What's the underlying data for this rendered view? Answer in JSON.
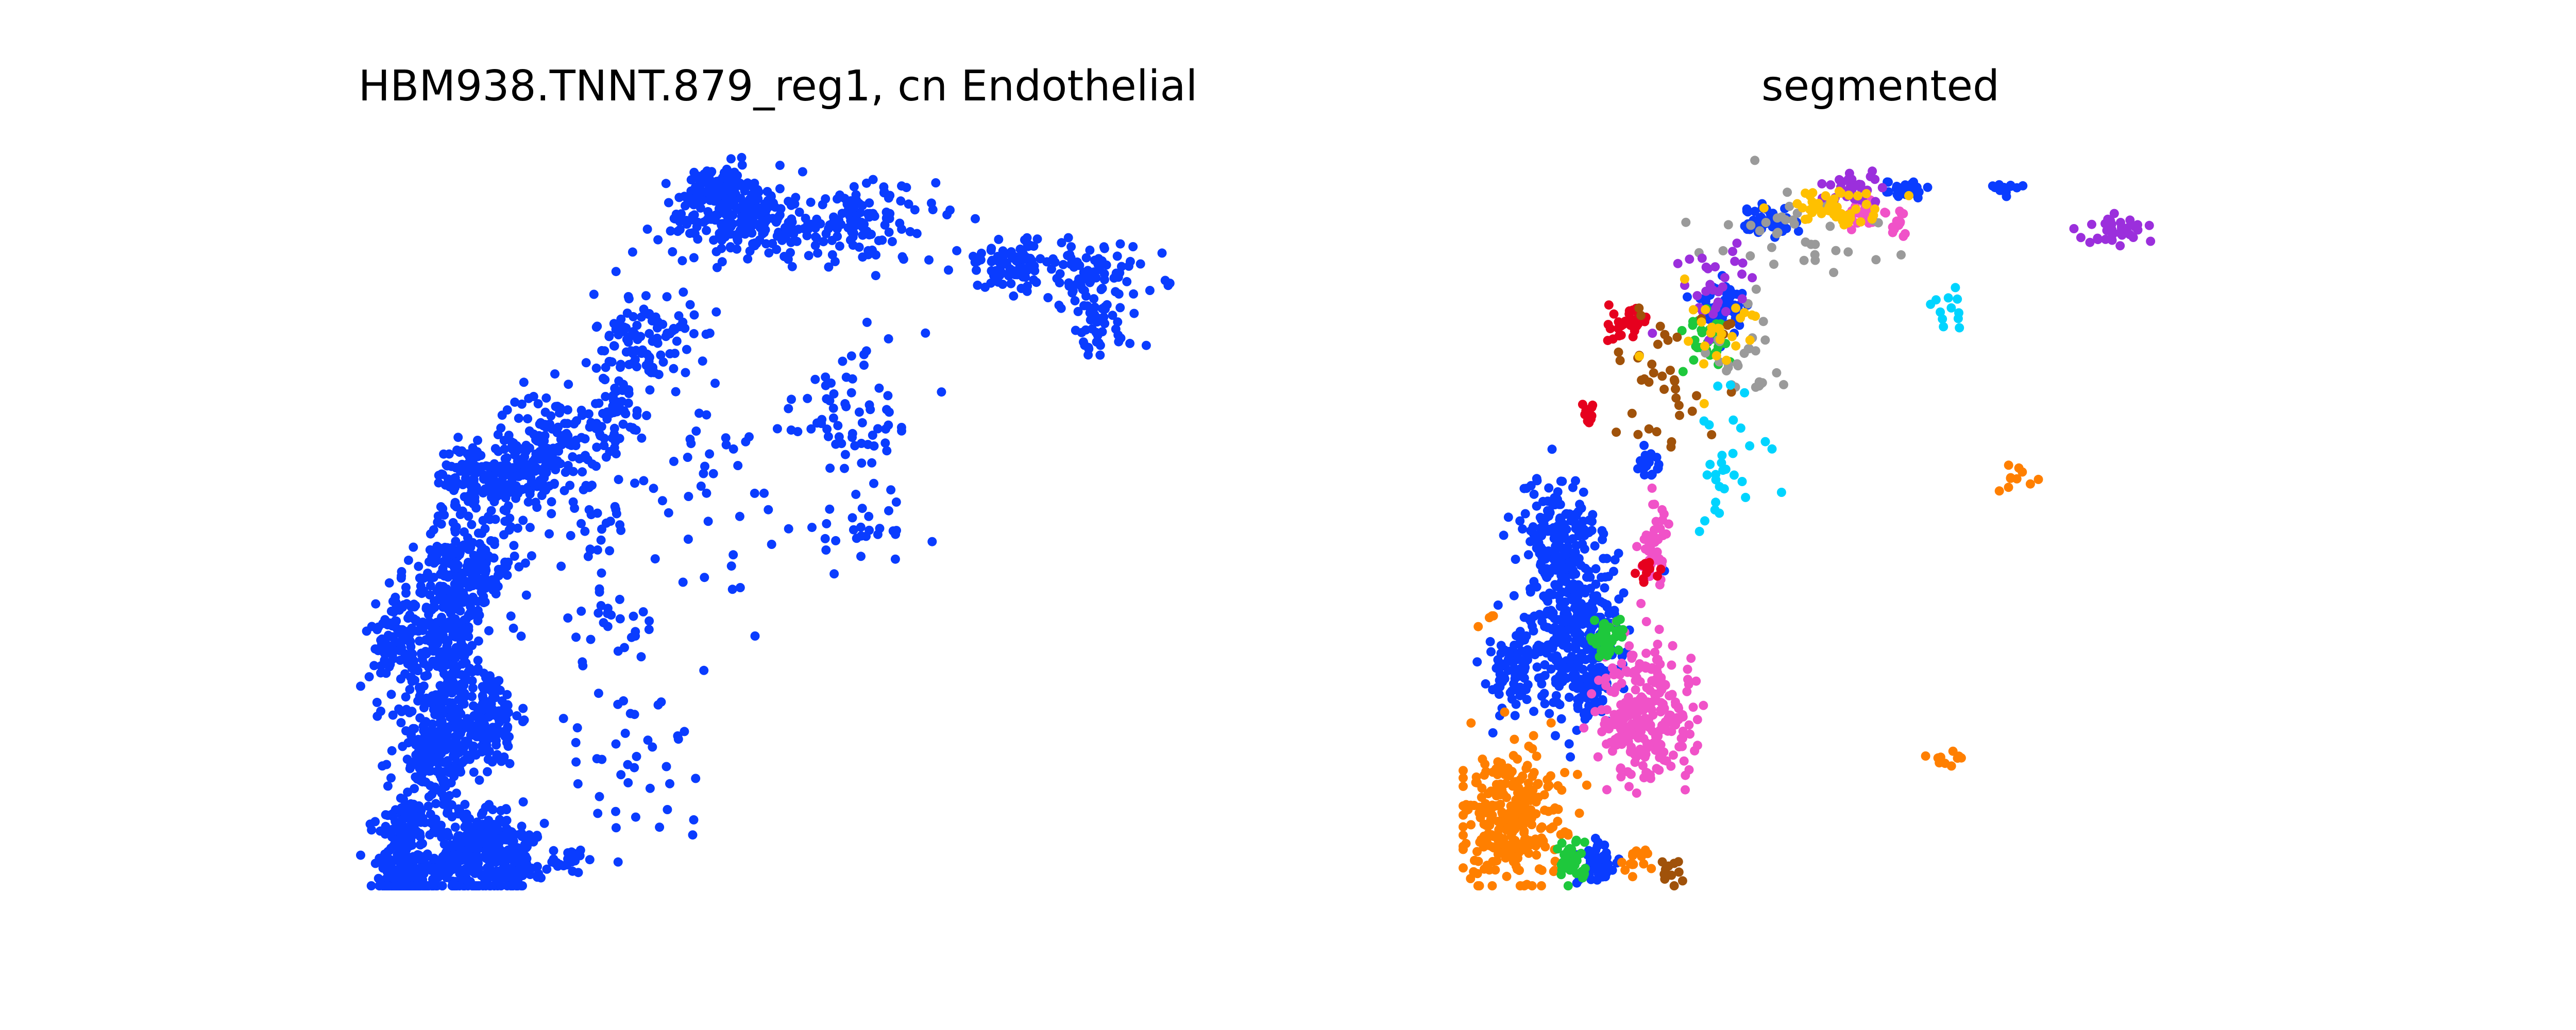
{
  "chart_data": [
    {
      "type": "scatter",
      "title": "HBM938.TNNT.879_reg1, cn Endothelial",
      "xlabel": "",
      "ylabel": "",
      "axes_visible": false,
      "xlim": [
        0,
        1000
      ],
      "ylim": [
        0,
        860
      ],
      "series": [
        {
          "color": "#0a3cff",
          "blobs": [
            {
              "x": 50,
              "y": 10,
              "rx": 30,
              "ry": 110,
              "n": 260
            },
            {
              "x": 110,
              "y": 30,
              "rx": 60,
              "ry": 60,
              "n": 200
            },
            {
              "x": 160,
              "y": 40,
              "rx": 40,
              "ry": 50,
              "n": 120
            },
            {
              "x": 190,
              "y": 30,
              "rx": 30,
              "ry": 40,
              "n": 70
            },
            {
              "x": 250,
              "y": 30,
              "rx": 20,
              "ry": 15,
              "n": 20
            },
            {
              "x": 90,
              "y": 160,
              "rx": 55,
              "ry": 80,
              "n": 220
            },
            {
              "x": 150,
              "y": 200,
              "rx": 40,
              "ry": 60,
              "n": 150
            },
            {
              "x": 100,
              "y": 300,
              "rx": 50,
              "ry": 80,
              "n": 240
            },
            {
              "x": 130,
              "y": 380,
              "rx": 60,
              "ry": 60,
              "n": 200
            },
            {
              "x": 40,
              "y": 290,
              "rx": 30,
              "ry": 60,
              "n": 80
            },
            {
              "x": 140,
              "y": 480,
              "rx": 50,
              "ry": 40,
              "n": 130
            },
            {
              "x": 230,
              "y": 530,
              "rx": 60,
              "ry": 50,
              "n": 110
            },
            {
              "x": 200,
              "y": 480,
              "rx": 40,
              "ry": 50,
              "n": 90
            },
            {
              "x": 340,
              "y": 640,
              "rx": 60,
              "ry": 60,
              "n": 110
            },
            {
              "x": 310,
              "y": 560,
              "rx": 30,
              "ry": 40,
              "n": 50
            },
            {
              "x": 460,
              "y": 780,
              "rx": 100,
              "ry": 40,
              "n": 200
            },
            {
              "x": 430,
              "y": 820,
              "rx": 40,
              "ry": 25,
              "n": 120
            },
            {
              "x": 600,
              "y": 780,
              "rx": 90,
              "ry": 50,
              "n": 120
            },
            {
              "x": 780,
              "y": 730,
              "rx": 60,
              "ry": 30,
              "n": 90
            },
            {
              "x": 880,
              "y": 720,
              "rx": 80,
              "ry": 40,
              "n": 80
            },
            {
              "x": 880,
              "y": 650,
              "rx": 50,
              "ry": 40,
              "n": 40
            },
            {
              "x": 600,
              "y": 560,
              "rx": 80,
              "ry": 80,
              "n": 60
            },
            {
              "x": 420,
              "y": 480,
              "rx": 120,
              "ry": 120,
              "n": 50
            },
            {
              "x": 600,
              "y": 420,
              "rx": 80,
              "ry": 40,
              "n": 30
            },
            {
              "x": 320,
              "y": 140,
              "rx": 100,
              "ry": 80,
              "n": 40
            },
            {
              "x": 300,
              "y": 300,
              "rx": 60,
              "ry": 80,
              "n": 30
            },
            {
              "x": 280,
              "y": 430,
              "rx": 40,
              "ry": 60,
              "n": 30
            }
          ]
        }
      ]
    },
    {
      "type": "scatter",
      "title": "segmented",
      "xlabel": "",
      "ylabel": "",
      "axes_visible": false,
      "xlim": [
        0,
        1000
      ],
      "ylim": [
        0,
        860
      ],
      "series": [
        {
          "color": "#0a3cff",
          "blobs": [
            {
              "x": 130,
              "y": 300,
              "rx": 55,
              "ry": 100,
              "n": 330
            },
            {
              "x": 110,
              "y": 420,
              "rx": 50,
              "ry": 60,
              "n": 140
            },
            {
              "x": 60,
              "y": 250,
              "rx": 40,
              "ry": 50,
              "n": 80
            },
            {
              "x": 150,
              "y": 230,
              "rx": 20,
              "ry": 30,
              "n": 40
            },
            {
              "x": 160,
              "y": 25,
              "rx": 30,
              "ry": 25,
              "n": 60
            },
            {
              "x": 310,
              "y": 680,
              "rx": 30,
              "ry": 30,
              "n": 70
            },
            {
              "x": 360,
              "y": 780,
              "rx": 35,
              "ry": 20,
              "n": 50
            },
            {
              "x": 530,
              "y": 820,
              "rx": 20,
              "ry": 10,
              "n": 25
            },
            {
              "x": 650,
              "y": 820,
              "rx": 15,
              "ry": 10,
              "n": 15
            },
            {
              "x": 220,
              "y": 500,
              "rx": 15,
              "ry": 20,
              "n": 20
            }
          ]
        },
        {
          "color": "#ff7f00",
          "blobs": [
            {
              "x": 60,
              "y": 80,
              "rx": 60,
              "ry": 80,
              "n": 280
            },
            {
              "x": 210,
              "y": 30,
              "rx": 20,
              "ry": 15,
              "n": 15
            },
            {
              "x": 580,
              "y": 150,
              "rx": 20,
              "ry": 10,
              "n": 10
            },
            {
              "x": 660,
              "y": 480,
              "rx": 20,
              "ry": 15,
              "n": 10
            },
            {
              "x": 30,
              "y": 315,
              "rx": 10,
              "ry": 10,
              "n": 4
            }
          ]
        },
        {
          "color": "#f052c8",
          "blobs": [
            {
              "x": 220,
              "y": 200,
              "rx": 60,
              "ry": 80,
              "n": 260
            },
            {
              "x": 230,
              "y": 400,
              "rx": 20,
              "ry": 50,
              "n": 40
            },
            {
              "x": 480,
              "y": 790,
              "rx": 25,
              "ry": 20,
              "n": 25
            },
            {
              "x": 520,
              "y": 780,
              "rx": 15,
              "ry": 15,
              "n": 12
            }
          ]
        },
        {
          "color": "#1ec83c",
          "blobs": [
            {
              "x": 130,
              "y": 30,
              "rx": 20,
              "ry": 25,
              "n": 40
            },
            {
              "x": 170,
              "y": 290,
              "rx": 25,
              "ry": 25,
              "n": 40
            },
            {
              "x": 290,
              "y": 640,
              "rx": 25,
              "ry": 40,
              "n": 30
            }
          ]
        },
        {
          "color": "#e6001e",
          "blobs": [
            {
              "x": 200,
              "y": 660,
              "rx": 30,
              "ry": 20,
              "n": 35
            },
            {
              "x": 150,
              "y": 550,
              "rx": 10,
              "ry": 20,
              "n": 12
            },
            {
              "x": 220,
              "y": 370,
              "rx": 15,
              "ry": 15,
              "n": 12
            }
          ]
        },
        {
          "color": "#9a9a9a",
          "blobs": [
            {
              "x": 400,
              "y": 760,
              "rx": 100,
              "ry": 60,
              "n": 40
            },
            {
              "x": 350,
              "y": 620,
              "rx": 60,
              "ry": 40,
              "n": 25
            }
          ]
        },
        {
          "color": "#9b2fdc",
          "blobs": [
            {
              "x": 470,
              "y": 820,
              "rx": 30,
              "ry": 20,
              "n": 35
            },
            {
              "x": 300,
              "y": 700,
              "rx": 50,
              "ry": 50,
              "n": 30
            },
            {
              "x": 780,
              "y": 770,
              "rx": 40,
              "ry": 20,
              "n": 35
            }
          ]
        },
        {
          "color": "#a0520a",
          "blobs": [
            {
              "x": 250,
              "y": 600,
              "rx": 80,
              "ry": 80,
              "n": 40
            },
            {
              "x": 250,
              "y": 20,
              "rx": 20,
              "ry": 20,
              "n": 12
            }
          ]
        },
        {
          "color": "#ffc000",
          "blobs": [
            {
              "x": 440,
              "y": 800,
              "rx": 60,
              "ry": 25,
              "n": 45
            },
            {
              "x": 300,
              "y": 650,
              "rx": 60,
              "ry": 60,
              "n": 25
            }
          ]
        },
        {
          "color": "#00d4ff",
          "blobs": [
            {
              "x": 320,
              "y": 500,
              "rx": 50,
              "ry": 80,
              "n": 30
            },
            {
              "x": 580,
              "y": 700,
              "rx": 30,
              "ry": 40,
              "n": 12
            }
          ]
        }
      ]
    }
  ]
}
